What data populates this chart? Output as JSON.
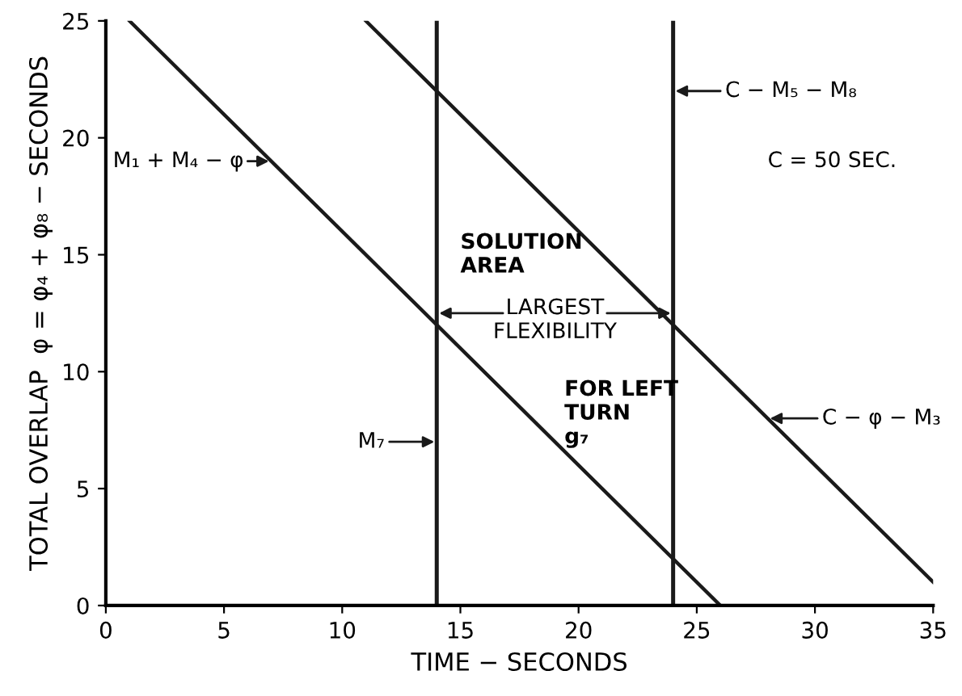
{
  "chart_data": {
    "type": "line",
    "xlabel": "TIME − SECONDS",
    "ylabel": "TOTAL OVERLAP  φ = φ₄ + φ₈ − SECONDS",
    "series": [
      {
        "color": "#1a1a1a",
        "x": [
          1,
          26
        ],
        "values": [
          25,
          0
        ]
      },
      {
        "color": "#1a1a1a",
        "x": [
          11,
          35
        ],
        "values": [
          25,
          1
        ]
      }
    ],
    "ref_lines": [
      {
        "axis": "x",
        "value": 14,
        "color": "#1a1a1a"
      },
      {
        "axis": "x",
        "value": 24,
        "color": "#1a1a1a"
      }
    ],
    "annotations": [
      "M₁ + M₄ − φ",
      "C − M₅ − M₈",
      "C = 50 SEC.",
      "SOLUTION\nAREA",
      "LARGEST\nFLEXIBILITY",
      "FOR LEFT\nTURN\ng₇",
      "M₇",
      "C − φ − M₃"
    ],
    "xlim": [
      0,
      35
    ],
    "ylim": [
      0,
      25
    ],
    "xticks": [
      0,
      5,
      10,
      15,
      20,
      25,
      30,
      35
    ],
    "yticks": [
      0,
      5,
      10,
      15,
      20,
      25
    ],
    "grid": false,
    "legend": false,
    "marker": "none",
    "line_style": "solid"
  }
}
